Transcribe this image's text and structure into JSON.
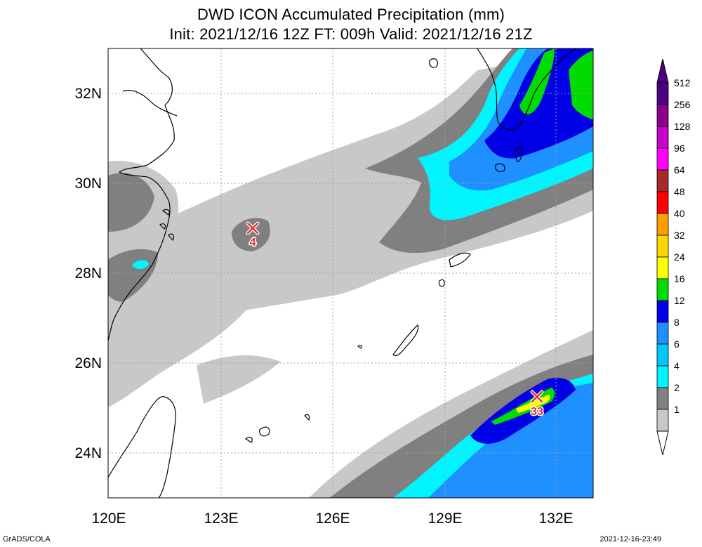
{
  "header": {
    "title": "DWD ICON Accumulated Precipitation (mm)",
    "subtitle": "Init: 2021/12/16 12Z  FT: 009h  Valid: 2021/12/16 21Z"
  },
  "map": {
    "lon_labels": [
      "120E",
      "123E",
      "126E",
      "129E",
      "132E"
    ],
    "lat_labels": [
      "32N",
      "30N",
      "28N",
      "26N",
      "24N"
    ],
    "extent": {
      "lon": [
        120,
        133
      ],
      "lat": [
        23,
        33
      ]
    },
    "markers": [
      {
        "name": "min",
        "label": "4",
        "lon": 123.9,
        "lat": 29.0
      },
      {
        "name": "max",
        "label": "33",
        "lon": 131.5,
        "lat": 25.25
      }
    ],
    "ocean_color": "#ffffff",
    "coast_color": "#000000",
    "grid": true
  },
  "legend": {
    "levels": [
      "1",
      "2",
      "4",
      "6",
      "8",
      "12",
      "16",
      "24",
      "32",
      "40",
      "48",
      "64",
      "96",
      "128",
      "256",
      "512"
    ],
    "colors": [
      "#c8c8c8",
      "#808080",
      "#00f5ff",
      "#00c8ff",
      "#1e90ff",
      "#0000e6",
      "#00dc00",
      "#ffff00",
      "#ffd700",
      "#ffa000",
      "#ff0000",
      "#a52a2a",
      "#ff00ff",
      "#c800c8",
      "#8b008b",
      "#4b0082"
    ],
    "top_color": "#4b0082",
    "bottom_color": "#ffffff"
  },
  "footer": {
    "left": "GrADS/COLA",
    "right": "2021-12-16-23:49"
  }
}
